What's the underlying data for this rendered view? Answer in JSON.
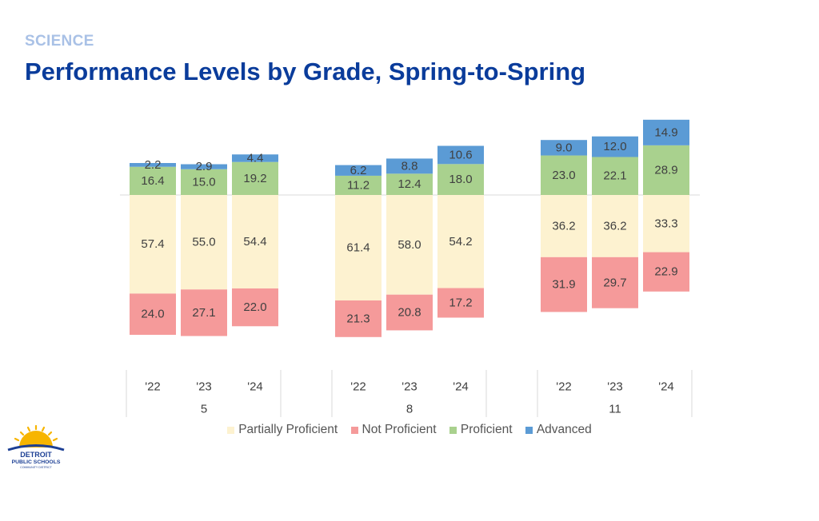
{
  "header": {
    "subject": "SCIENCE",
    "title": "Performance Levels by Grade, Spring-to-Spring"
  },
  "logo": {
    "line1": "DETROIT",
    "line2": "PUBLIC SCHOOLS",
    "line3": "COMMUNITY DISTRICT"
  },
  "colors": {
    "partially": "#fdf2d0",
    "not": "#f59a9a",
    "proficient": "#a9d18e",
    "advanced": "#5b9bd5",
    "title": "#0a3c9b",
    "subject": "#a9c1e6"
  },
  "chart_data": {
    "type": "bar",
    "stacking": "diverging",
    "title": "Performance Levels by Grade, Spring-to-Spring",
    "groups": [
      {
        "grade": "5",
        "years": [
          "'22",
          "'23",
          "'24"
        ]
      },
      {
        "grade": "8",
        "years": [
          "'22",
          "'23",
          "'24"
        ]
      },
      {
        "grade": "11",
        "years": [
          "'22",
          "'23",
          "'24"
        ]
      }
    ],
    "series": [
      {
        "name": "Partially Proficient",
        "side": "below",
        "values": [
          57.4,
          55.0,
          54.4,
          61.4,
          58.0,
          54.2,
          36.2,
          36.2,
          33.3
        ]
      },
      {
        "name": "Not Proficient",
        "side": "below",
        "values": [
          24.0,
          27.1,
          22.0,
          21.3,
          20.8,
          17.2,
          31.9,
          29.7,
          22.9
        ]
      },
      {
        "name": "Proficient",
        "side": "above",
        "values": [
          16.4,
          15.0,
          19.2,
          11.2,
          12.4,
          18.0,
          23.0,
          22.1,
          28.9
        ]
      },
      {
        "name": "Advanced",
        "side": "above",
        "values": [
          2.2,
          2.9,
          4.4,
          6.2,
          8.8,
          10.6,
          9.0,
          12.0,
          14.9
        ]
      }
    ],
    "legend": [
      "Partially Proficient",
      "Not Proficient",
      "Proficient",
      "Advanced"
    ],
    "legend_position": "bottom"
  }
}
